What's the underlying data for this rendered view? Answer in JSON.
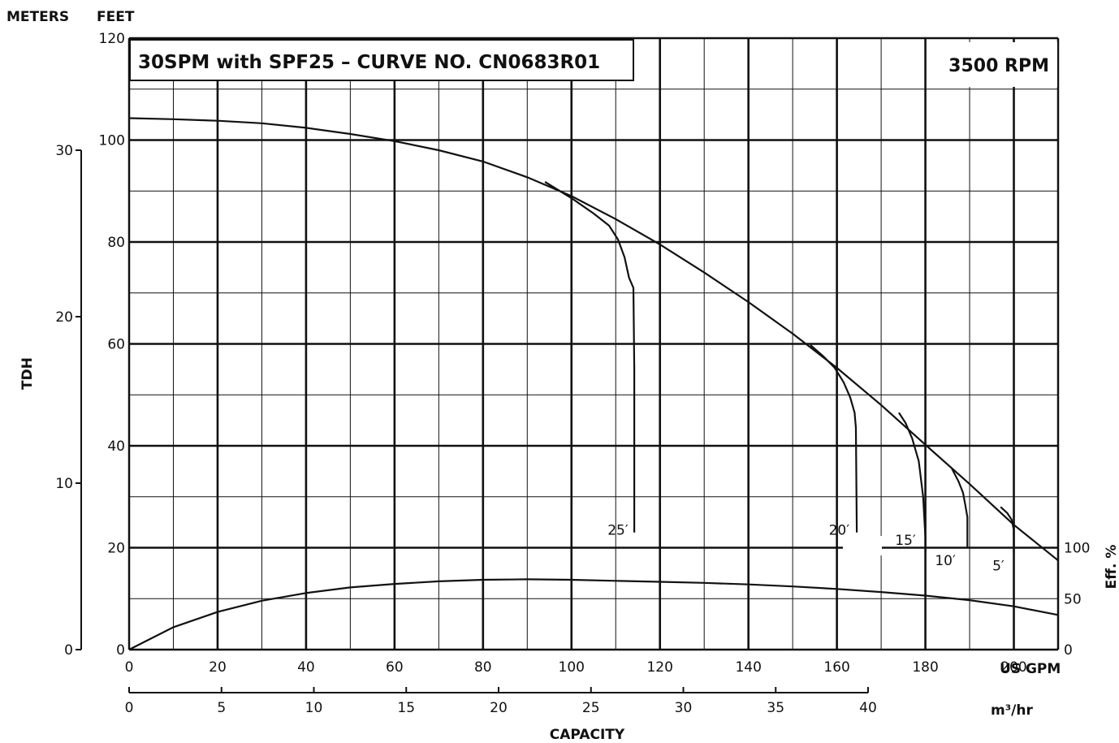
{
  "chart_data": {
    "type": "line",
    "title": "30SPM with SPF25  –  CURVE NO. CN0683R01",
    "speed_label": "3500 RPM",
    "axis_labels": {
      "meters": "METERS",
      "feet": "FEET",
      "tdh": "TDH",
      "us_gpm": "US GPM",
      "m3hr": "m³/hr",
      "capacity": "CAPACITY",
      "efficiency": "Eff. %"
    },
    "x_gpm": {
      "range": [
        0,
        210
      ],
      "ticks": [
        0,
        20,
        40,
        60,
        80,
        100,
        120,
        140,
        160,
        180,
        200
      ]
    },
    "x_m3hr": {
      "range": [
        0,
        40
      ],
      "ticks": [
        0,
        5,
        10,
        15,
        20,
        25,
        30,
        35,
        40
      ]
    },
    "y_feet": {
      "range": [
        0,
        120
      ],
      "ticks": [
        0,
        20,
        40,
        60,
        80,
        100,
        120
      ]
    },
    "y_meters": {
      "ticks": [
        0,
        10,
        20,
        30
      ]
    },
    "y_eff": {
      "range": [
        0,
        100
      ],
      "ticks": [
        0,
        50,
        100
      ]
    },
    "grid": true,
    "head_curve": {
      "x": [
        0,
        10,
        20,
        30,
        40,
        50,
        60,
        70,
        80,
        90,
        100,
        110,
        120,
        130,
        140,
        150,
        160,
        170,
        180,
        190,
        200,
        210
      ],
      "y": [
        104.3,
        104.1,
        103.8,
        103.3,
        102.4,
        101.2,
        99.8,
        98.0,
        95.8,
        92.7,
        89.0,
        84.5,
        79.5,
        74.0,
        68.2,
        62.0,
        55.3,
        48.0,
        40.2,
        32.5,
        24.5,
        17.5
      ]
    },
    "efficiency_curve": {
      "x": [
        0,
        10,
        20,
        30,
        40,
        50,
        60,
        70,
        80,
        90,
        100,
        110,
        120,
        130,
        140,
        150,
        160,
        170,
        180,
        190,
        200,
        210
      ],
      "y": [
        0,
        22,
        37,
        48,
        55.5,
        61,
        64.5,
        67,
        68.5,
        69,
        68.5,
        67.5,
        66.5,
        65.5,
        64,
        62,
        59.5,
        56.5,
        53,
        48.5,
        42.5,
        34
      ]
    },
    "series": [
      {
        "name": "25′",
        "label_at": [
          110.5,
          23.5
        ],
        "x": [
          94,
          100,
          105,
          108.5,
          110.5,
          112,
          113,
          114,
          114.2,
          114.2
        ],
        "y": [
          91.8,
          88.6,
          85.6,
          83.2,
          80.5,
          77,
          73,
          71,
          55,
          23
        ]
      },
      {
        "name": "20′",
        "label_at": [
          160.5,
          23.5
        ],
        "x": [
          154,
          157,
          159.5,
          161.5,
          163,
          164,
          164.3,
          164.5
        ],
        "y": [
          59.8,
          57.5,
          55.3,
          52.5,
          49.5,
          46.5,
          43.5,
          23
        ]
      },
      {
        "name": "15′",
        "label_at": [
          175.5,
          21.5
        ],
        "x": [
          174,
          175.5,
          177,
          178.5,
          179.5,
          180,
          180
        ],
        "y": [
          46.5,
          44.5,
          41.5,
          37,
          30,
          22,
          19
        ]
      },
      {
        "name": "10′",
        "label_at": [
          184.5,
          17.5
        ],
        "x": [
          186,
          187.5,
          188.5,
          189,
          189.5,
          189.5
        ],
        "y": [
          35.5,
          33,
          30.8,
          28.5,
          26,
          20
        ]
      },
      {
        "name": "5′",
        "label_at": [
          196.5,
          16.5
        ],
        "x": [
          197,
          198.5,
          199.5,
          200,
          200
        ],
        "y": [
          28,
          26.8,
          25.5,
          23.5,
          19
        ]
      }
    ]
  }
}
